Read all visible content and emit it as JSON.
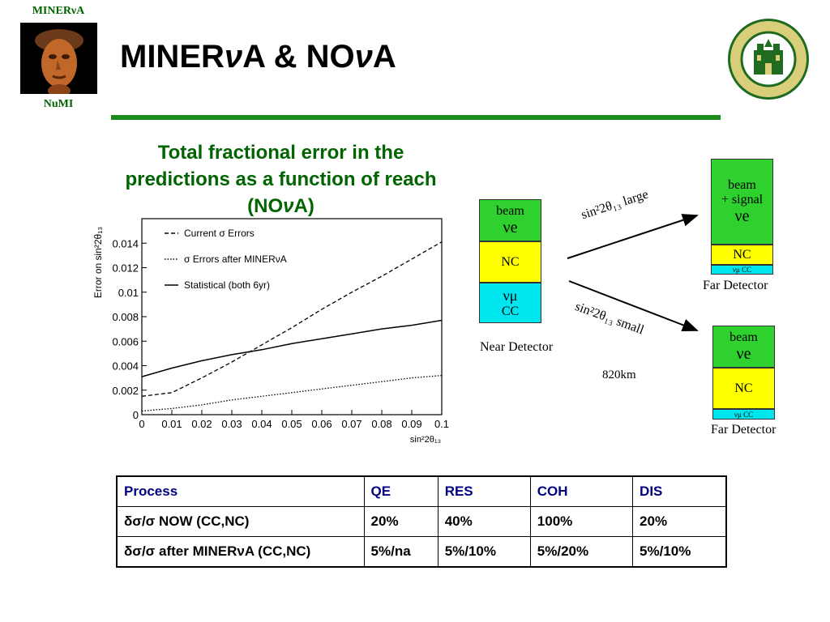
{
  "header": {
    "logo_top": "MINERνA",
    "logo_bottom": "NuMI",
    "title_parts": [
      "MINER",
      "ν",
      "A & NO",
      "ν",
      "A"
    ]
  },
  "subtitle": {
    "line1": "Total fractional error in the",
    "line2": "predictions as a function of reach",
    "line3_pre": "(NO",
    "line3_nu": "ν",
    "line3_post": "A)"
  },
  "chart_data": {
    "type": "line",
    "xlabel": "sin²2θ₁₃",
    "ylabel": "Error on sin²2θ₁₃",
    "xlim": [
      0,
      0.1
    ],
    "ylim": [
      0,
      0.016
    ],
    "x_ticks": [
      "0",
      "0.01",
      "0.02",
      "0.03",
      "0.04",
      "0.05",
      "0.06",
      "0.07",
      "0.08",
      "0.09",
      "0.1"
    ],
    "y_ticks": [
      "0",
      "0.002",
      "0.004",
      "0.006",
      "0.008",
      "0.01",
      "0.012",
      "0.014"
    ],
    "legend_position": "top-left",
    "series": [
      {
        "name": "Current σ Errors",
        "style": "dashed",
        "x": [
          0,
          0.01,
          0.02,
          0.03,
          0.04,
          0.05,
          0.06,
          0.07,
          0.08,
          0.09,
          0.1
        ],
        "y": [
          0.0015,
          0.0018,
          0.003,
          0.0043,
          0.0057,
          0.0071,
          0.0086,
          0.01,
          0.0113,
          0.0127,
          0.0141
        ]
      },
      {
        "name": "σ Errors after MINERνA",
        "style": "dotted",
        "x": [
          0,
          0.01,
          0.02,
          0.03,
          0.04,
          0.05,
          0.06,
          0.07,
          0.08,
          0.09,
          0.1
        ],
        "y": [
          0.0003,
          0.0005,
          0.0008,
          0.0012,
          0.0015,
          0.0018,
          0.0021,
          0.0024,
          0.0027,
          0.003,
          0.0032
        ]
      },
      {
        "name": "Statistical (both 6yr)",
        "style": "solid",
        "x": [
          0,
          0.01,
          0.02,
          0.03,
          0.04,
          0.05,
          0.06,
          0.07,
          0.08,
          0.09,
          0.1
        ],
        "y": [
          0.0031,
          0.0038,
          0.0044,
          0.0049,
          0.0053,
          0.0058,
          0.0062,
          0.0066,
          0.007,
          0.0073,
          0.0077
        ]
      }
    ]
  },
  "diagram": {
    "near": {
      "beam": "beam",
      "nu_e": "νe",
      "nc": "NC",
      "nu_mu": "νμ",
      "cc": "CC",
      "label": "Near Detector"
    },
    "far_top": {
      "beam": "beam",
      "signal": "+ signal",
      "nu_e": "νe",
      "nc": "NC",
      "numu_cc": "νμ CC",
      "label": "Far Detector"
    },
    "far_bottom": {
      "beam": "beam",
      "nu_e": "νe",
      "nc": "NC",
      "numu_cc": "νμ CC",
      "label": "Far Detector"
    },
    "arrow_top_label": "sin²2θ₁₃ large",
    "arrow_bottom_label": "sin²2θ₁₃ small",
    "distance": "820km"
  },
  "table": {
    "headers": [
      "Process",
      "QE",
      "RES",
      "COH",
      "DIS"
    ],
    "rows": [
      [
        "δσ/σ NOW (CC,NC)",
        "20%",
        "40%",
        "100%",
        "20%"
      ],
      [
        "δσ/σ after MINERνA (CC,NC)",
        "5%/na",
        "5%/10%",
        "5%/20%",
        "5%/10%"
      ]
    ]
  },
  "colors": {
    "green_text": "#006400",
    "rule": "#1a8c1a",
    "box_green": "#2fd12f",
    "box_yellow": "#ffff00",
    "box_cyan": "#00e6ef",
    "table_header": "#000080"
  }
}
